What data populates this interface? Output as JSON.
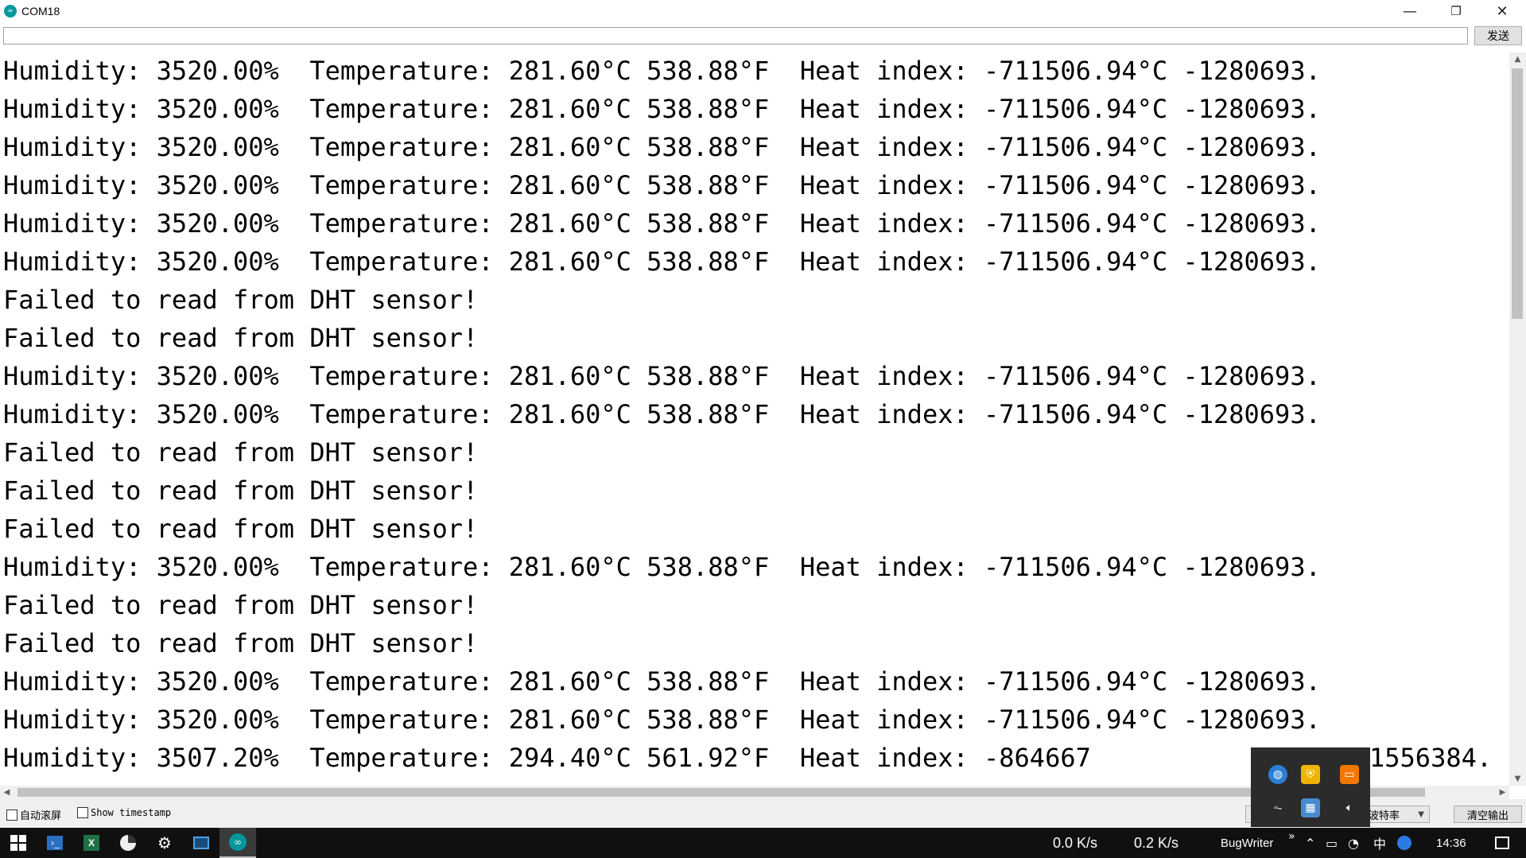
{
  "window": {
    "title": "COM18",
    "icon": "arduino-icon",
    "controls": {
      "minimize": "—",
      "restore": "❐",
      "close": "✕"
    }
  },
  "send_bar": {
    "input_value": "",
    "send_label": "发送"
  },
  "output_lines": [
    "Humidity: 3520.00%  Temperature: 281.60°C 538.88°F  Heat index: -711506.94°C -1280693.",
    "Humidity: 3520.00%  Temperature: 281.60°C 538.88°F  Heat index: -711506.94°C -1280693.",
    "Humidity: 3520.00%  Temperature: 281.60°C 538.88°F  Heat index: -711506.94°C -1280693.",
    "Humidity: 3520.00%  Temperature: 281.60°C 538.88°F  Heat index: -711506.94°C -1280693.",
    "Humidity: 3520.00%  Temperature: 281.60°C 538.88°F  Heat index: -711506.94°C -1280693.",
    "Humidity: 3520.00%  Temperature: 281.60°C 538.88°F  Heat index: -711506.94°C -1280693.",
    "Failed to read from DHT sensor!",
    "Failed to read from DHT sensor!",
    "Humidity: 3520.00%  Temperature: 281.60°C 538.88°F  Heat index: -711506.94°C -1280693.",
    "Humidity: 3520.00%  Temperature: 281.60°C 538.88°F  Heat index: -711506.94°C -1280693.",
    "Failed to read from DHT sensor!",
    "Failed to read from DHT sensor!",
    "Failed to read from DHT sensor!",
    "Humidity: 3520.00%  Temperature: 281.60°C 538.88°F  Heat index: -711506.94°C -1280693.",
    "Failed to read from DHT sensor!",
    "Failed to read from DHT sensor!",
    "Humidity: 3520.00%  Temperature: 281.60°C 538.88°F  Heat index: -711506.94°C -1280693.",
    "Humidity: 3520.00%  Temperature: 281.60°C 538.88°F  Heat index: -711506.94°C -1280693.",
    "Humidity: 3507.20%  Temperature: 294.40°C 561.92°F  Heat index: -864667"
  ],
  "output_last_line_tail": "1556384.",
  "bottom_bar": {
    "autoscroll_label": "自动滚屏",
    "autoscroll_checked": false,
    "timestamp_label": "Show timestamp",
    "timestamp_checked": false,
    "baud_label": "波特率",
    "clear_label": "清空输出"
  },
  "tray_popup_icons": [
    "globe-icon",
    "shield-icon",
    "window-icon",
    "waveform-icon",
    "network-app-icon",
    "volume-icon"
  ],
  "taskbar": {
    "net_up": "0.0 K/s",
    "net_down": "0.2 K/s",
    "app_label": "BugWriter",
    "ime_label": "中",
    "clock": "14:36",
    "overflow_glyph": "»"
  },
  "colors": {
    "arduino_teal": "#00979c",
    "taskbar_bg": "#101010",
    "scrollbar_thumb": "#c1c1c1"
  }
}
